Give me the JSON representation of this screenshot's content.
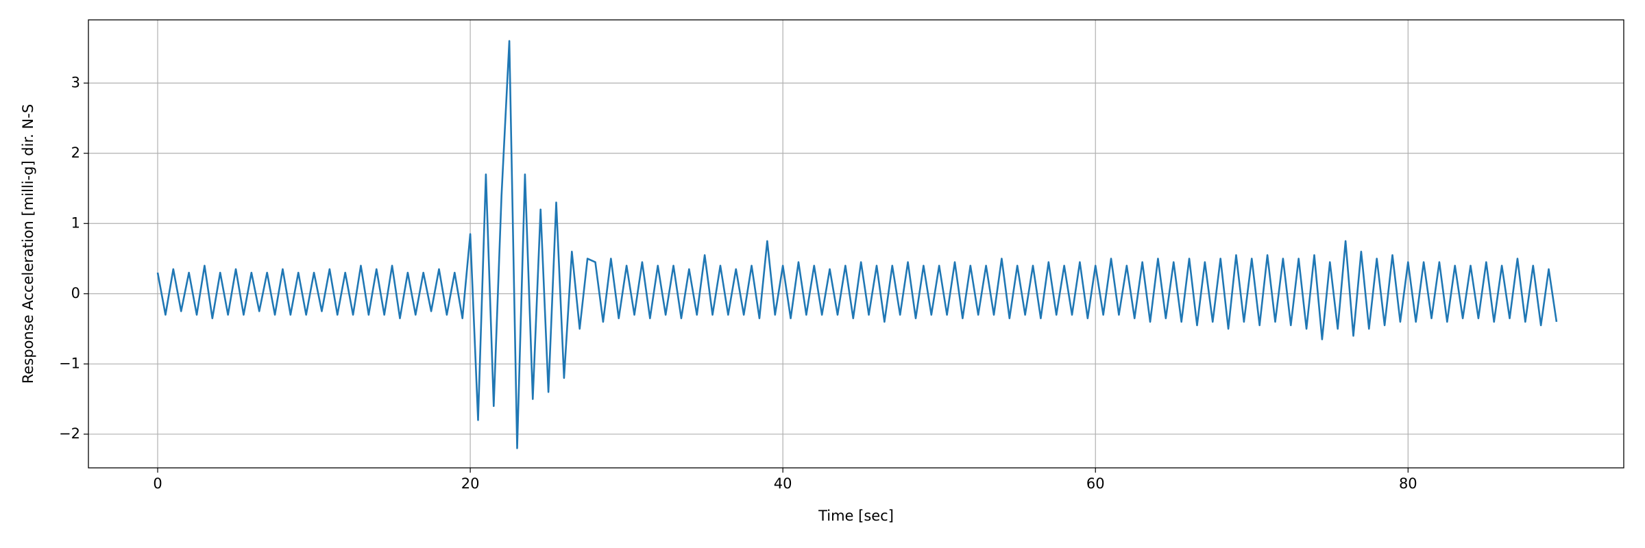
{
  "chart_data": {
    "type": "line",
    "xlabel": "Time [sec]",
    "ylabel": "Response Acceleration [milli-g] dir. N-S",
    "color": "#1f77b4",
    "grid": true,
    "xlim": [
      -4.43,
      93.8
    ],
    "ylim": [
      -2.48,
      3.9
    ],
    "xticks": [
      0,
      20,
      40,
      60,
      80
    ],
    "yticks": [
      {
        "value": -2,
        "label": "−2"
      },
      {
        "value": -1,
        "label": "−1"
      },
      0,
      1,
      2,
      3
    ],
    "x": [
      0,
      0.5,
      1,
      1.5,
      2,
      2.5,
      3,
      3.5,
      4,
      4.5,
      5,
      5.5,
      6,
      6.5,
      7,
      7.5,
      8,
      8.5,
      9,
      9.5,
      10,
      10.5,
      11,
      11.5,
      12,
      12.5,
      13,
      13.5,
      14,
      14.5,
      15,
      15.5,
      16,
      16.5,
      17,
      17.5,
      18,
      18.5,
      19,
      19.5,
      20,
      20.5,
      21,
      21.5,
      22,
      22.5,
      23,
      23.5,
      24,
      24.5,
      25,
      25.5,
      26,
      26.5,
      27,
      27.5,
      28,
      28.5,
      29,
      29.5,
      30,
      30.5,
      31,
      31.5,
      32,
      32.5,
      33,
      33.5,
      34,
      34.5,
      35,
      35.5,
      36,
      36.5,
      37,
      37.5,
      38,
      38.5,
      39,
      39.5,
      40,
      40.5,
      41,
      41.5,
      42,
      42.5,
      43,
      43.5,
      44,
      44.5,
      45,
      45.5,
      46,
      46.5,
      47,
      47.5,
      48,
      48.5,
      49,
      49.5,
      50,
      50.5,
      51,
      51.5,
      52,
      52.5,
      53,
      53.5,
      54,
      54.5,
      55,
      55.5,
      56,
      56.5,
      57,
      57.5,
      58,
      58.5,
      59,
      59.5,
      60,
      60.5,
      61,
      61.5,
      62,
      62.5,
      63,
      63.5,
      64,
      64.5,
      65,
      65.5,
      66,
      66.5,
      67,
      67.5,
      68,
      68.5,
      69,
      69.5,
      70,
      70.5,
      71,
      71.5,
      72,
      72.5,
      73,
      73.5,
      74,
      74.5,
      75,
      75.5,
      76,
      76.5,
      77,
      77.5,
      78,
      78.5,
      79,
      79.5,
      80,
      80.5,
      81,
      81.5,
      82,
      82.5,
      83,
      83.5,
      84,
      84.5,
      85,
      85.5,
      86,
      86.5,
      87,
      87.5,
      88,
      88.5,
      89,
      89.5
    ],
    "values": [
      0.3,
      -0.3,
      0.35,
      -0.25,
      0.3,
      -0.3,
      0.4,
      -0.35,
      0.3,
      -0.3,
      0.35,
      -0.3,
      0.3,
      -0.25,
      0.3,
      -0.3,
      0.35,
      -0.3,
      0.3,
      -0.3,
      0.3,
      -0.25,
      0.35,
      -0.3,
      0.3,
      -0.3,
      0.4,
      -0.3,
      0.35,
      -0.3,
      0.4,
      -0.35,
      0.3,
      -0.3,
      0.3,
      -0.25,
      0.35,
      -0.3,
      0.3,
      -0.35,
      0.85,
      -1.8,
      1.7,
      -1.6,
      1.4,
      3.6,
      -2.2,
      1.7,
      -1.5,
      1.2,
      -1.4,
      1.3,
      -1.2,
      0.6,
      -0.5,
      0.5,
      0.45,
      -0.4,
      0.5,
      -0.35,
      0.4,
      -0.3,
      0.45,
      -0.35,
      0.4,
      -0.3,
      0.4,
      -0.35,
      0.35,
      -0.3,
      0.55,
      -0.3,
      0.4,
      -0.3,
      0.35,
      -0.3,
      0.4,
      -0.35,
      0.75,
      -0.3,
      0.4,
      -0.35,
      0.45,
      -0.3,
      0.4,
      -0.3,
      0.35,
      -0.3,
      0.4,
      -0.35,
      0.45,
      -0.3,
      0.4,
      -0.4,
      0.4,
      -0.3,
      0.45,
      -0.35,
      0.4,
      -0.3,
      0.4,
      -0.3,
      0.45,
      -0.35,
      0.4,
      -0.3,
      0.4,
      -0.3,
      0.5,
      -0.35,
      0.4,
      -0.3,
      0.4,
      -0.35,
      0.45,
      -0.3,
      0.4,
      -0.3,
      0.45,
      -0.35,
      0.4,
      -0.3,
      0.5,
      -0.3,
      0.4,
      -0.35,
      0.45,
      -0.4,
      0.5,
      -0.35,
      0.45,
      -0.4,
      0.5,
      -0.45,
      0.45,
      -0.4,
      0.5,
      -0.5,
      0.55,
      -0.4,
      0.5,
      -0.45,
      0.55,
      -0.4,
      0.5,
      -0.45,
      0.5,
      -0.5,
      0.55,
      -0.65,
      0.45,
      -0.5,
      0.75,
      -0.6,
      0.6,
      -0.5,
      0.5,
      -0.45,
      0.55,
      -0.4,
      0.45,
      -0.4,
      0.45,
      -0.35,
      0.45,
      -0.4,
      0.4,
      -0.35,
      0.4,
      -0.35,
      0.45,
      -0.4,
      0.4,
      -0.35,
      0.5,
      -0.4,
      0.4,
      -0.45,
      0.35,
      -0.4
    ]
  }
}
